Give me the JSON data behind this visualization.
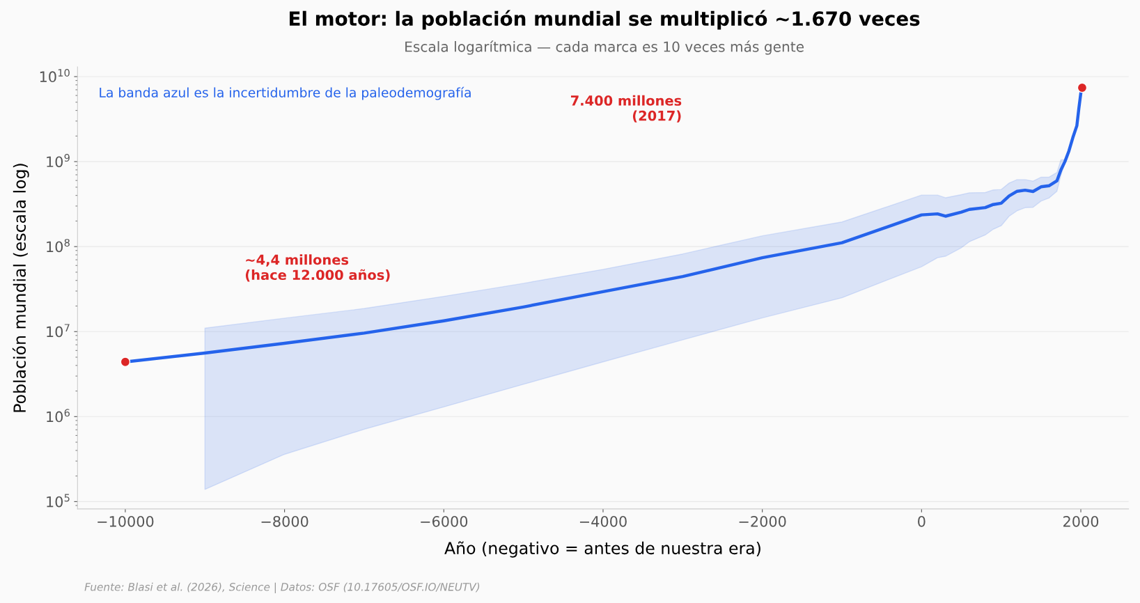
{
  "chart_data": {
    "type": "line",
    "title": "El motor: la población mundial se multiplicó ~1.670 veces",
    "subtitle": "Escala logarítmica — cada marca es 10 veces más gente",
    "xlabel": "Año (negativo = antes de nuestra era)",
    "ylabel": "Población mundial (escala log)",
    "series": [
      {
        "color": "#2563eb",
        "marker": "none",
        "x": [
          -10000,
          -9000,
          -8000,
          -7000,
          -6000,
          -5000,
          -4000,
          -3000,
          -2000,
          -1000,
          0,
          200,
          300,
          500,
          600,
          800,
          900,
          1000,
          1100,
          1200,
          1300,
          1400,
          1500,
          1600,
          1700,
          1750,
          1800,
          1850,
          1900,
          1950,
          1975,
          2000,
          2017
        ],
        "values": [
          4400000.0,
          5600000.0,
          7300000.0,
          9600000.0,
          13400000.0,
          19500000.0,
          29500000.0,
          44500000.0,
          74000000.0,
          111000000.0,
          236000000.0,
          243000000.0,
          228000000.0,
          255000000.0,
          274000000.0,
          288000000.0,
          313000000.0,
          324000000.0,
          395000000.0,
          448000000.0,
          461000000.0,
          445000000.0,
          505000000.0,
          520000000.0,
          594000000.0,
          800000000.0,
          1000000000.0,
          1330000000.0,
          1920000000.0,
          2640000000.0,
          4200000000.0,
          6400000000.0,
          7400000000.0
        ],
        "lower": [
          null,
          139000.0,
          360000.0,
          710000.0,
          1300000.0,
          2400000.0,
          4400000.0,
          8000000.0,
          14500000.0,
          25000000.0,
          58000000.0,
          74000000.0,
          77000000.0,
          97000000.0,
          114000000.0,
          137000000.0,
          160000000.0,
          176000000.0,
          228000000.0,
          264000000.0,
          287000000.0,
          290000000.0,
          343000000.0,
          373000000.0,
          448000000.0,
          690000000.0,
          950000000.0,
          null,
          null,
          null,
          null,
          null,
          null
        ],
        "upper": [
          null,
          11000000.0,
          14400000.0,
          18700000.0,
          26000000.0,
          37000000.0,
          54000000.0,
          82000000.0,
          134000000.0,
          195000000.0,
          404000000.0,
          404000000.0,
          376000000.0,
          409000000.0,
          430000000.0,
          433000000.0,
          465000000.0,
          470000000.0,
          560000000.0,
          615000000.0,
          615000000.0,
          590000000.0,
          656000000.0,
          656000000.0,
          745000000.0,
          1050000000.0,
          1050000000.0,
          null,
          null,
          null,
          null,
          null,
          null
        ]
      },
      {
        "type": "scatter",
        "marker": "circle",
        "color": "#dc2626",
        "x": [
          -10000,
          2017
        ],
        "values": [
          4400000.0,
          7400000000.0
        ]
      }
    ],
    "annotations": [
      "~4,4 millones\n(hace 12.000 años)",
      "7.400 millones\n(2017)",
      "La banda azul es la incertidumbre de la paleodemografía",
      "Fuente: Blasi et al. (2026), Science | Datos: OSF (10.17605/OSF.IO/NEUTV)"
    ],
    "log": "y",
    "xlim": [
      -10600,
      2600
    ],
    "ylim": [
      82000,
      13000000000.0
    ],
    "xticks": [
      {
        "value": -10000,
        "label": "−10000"
      },
      {
        "value": -8000,
        "label": "−8000"
      },
      {
        "value": -6000,
        "label": "−6000"
      },
      {
        "value": -4000,
        "label": "−4000"
      },
      {
        "value": -2000,
        "label": "−2000"
      },
      0,
      2000
    ],
    "yticks": [
      {
        "value": 100000,
        "label": "10$^{5}$"
      },
      {
        "value": 1000000,
        "label": "10$^{6}$"
      },
      {
        "value": 10000000,
        "label": "10$^{7}$"
      },
      {
        "value": 100000000,
        "label": "10$^{8}$"
      },
      {
        "value": 1000000000,
        "label": "10$^{9}$"
      },
      {
        "value": 10000000000,
        "label": "10$^{10}$"
      }
    ],
    "grid": "y",
    "line_style": "solid"
  }
}
